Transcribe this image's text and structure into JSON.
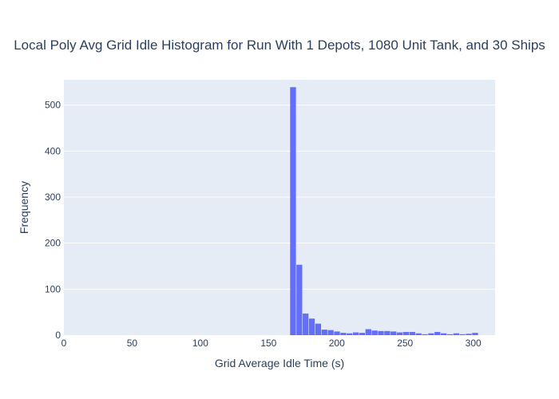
{
  "chart_data": {
    "type": "bar",
    "title": "Local Poly Avg Grid Idle Histogram for Run With 1 Depots, 1080 Unit Tank, and 30 Ships",
    "xlabel": "Grid Average Idle Time (s)",
    "ylabel": "Frequency",
    "xlim": [
      0,
      316
    ],
    "ylim": [
      0,
      555
    ],
    "x_ticks": [
      0,
      50,
      100,
      150,
      200,
      250,
      300
    ],
    "y_ticks": [
      0,
      100,
      200,
      300,
      400,
      500
    ],
    "bin_width": 4.6,
    "bin_start": 165.8,
    "values": [
      539,
      153,
      47,
      36,
      25,
      12,
      11,
      8,
      5,
      4,
      6,
      5,
      13,
      10,
      9,
      9,
      8,
      6,
      7,
      7,
      4,
      2,
      4,
      7,
      4,
      2,
      4,
      2,
      3,
      5
    ],
    "grid": true,
    "bar_color": "#636efa",
    "plot_bg": "#e5ecf6"
  }
}
